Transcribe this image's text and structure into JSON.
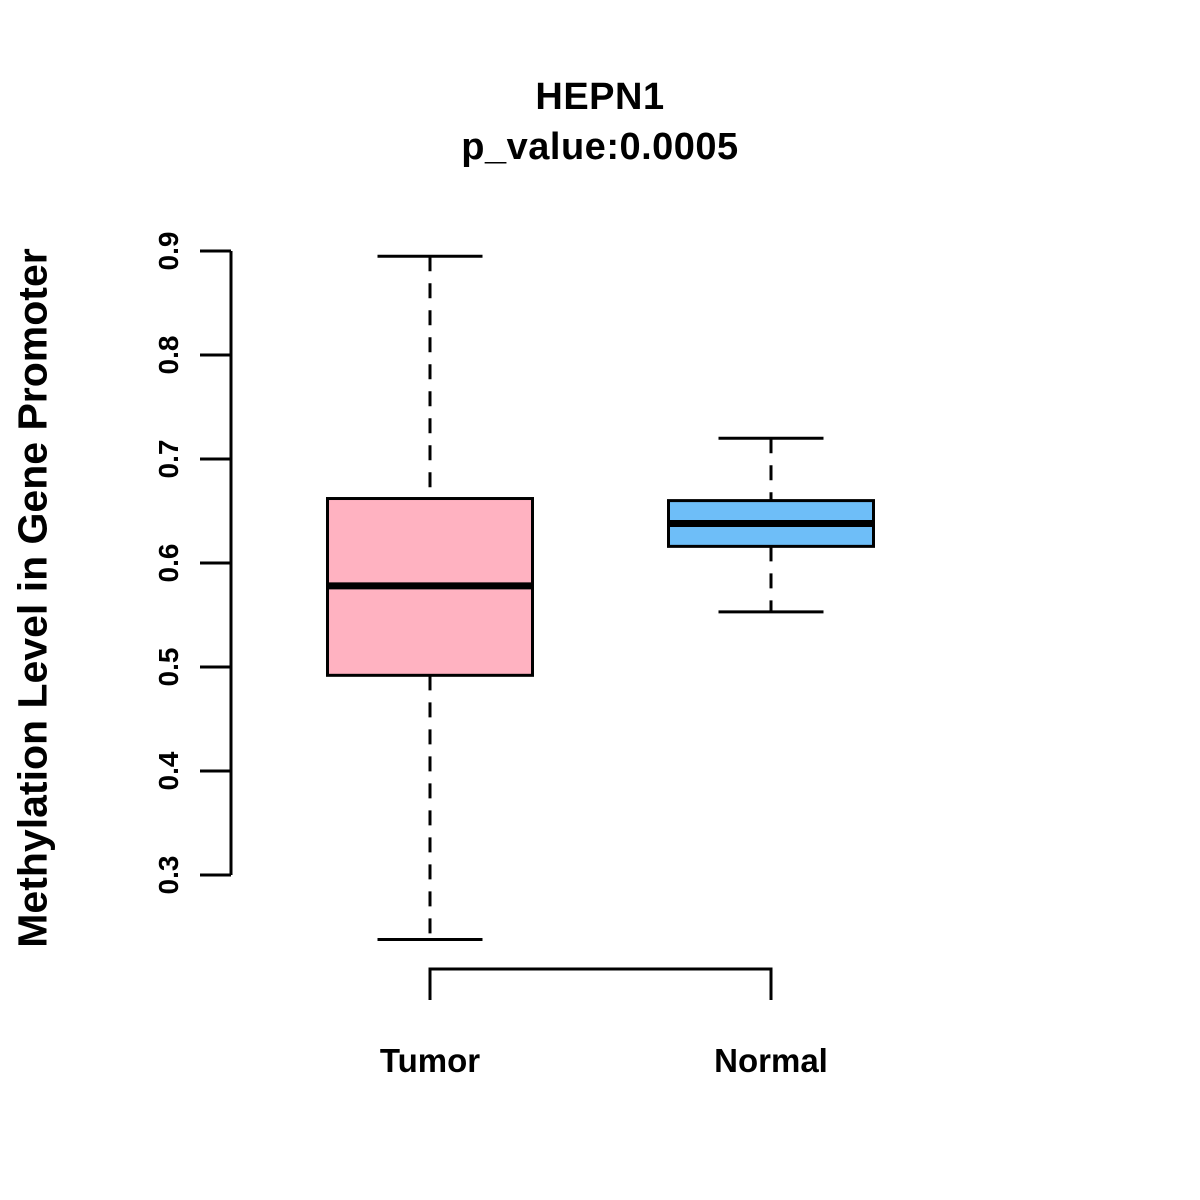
{
  "chart_data": {
    "type": "boxplot",
    "title": "HEPN1",
    "subtitle": "p_value:0.0005",
    "ylabel": "Methylation Level in Gene Promoter",
    "xlabel": "",
    "categories": [
      "Tumor",
      "Normal"
    ],
    "ytick_labels": [
      "0.3",
      "0.4",
      "0.5",
      "0.6",
      "0.7",
      "0.8",
      "0.9"
    ],
    "ytick_values": [
      0.3,
      0.4,
      0.5,
      0.6,
      0.7,
      0.8,
      0.9
    ],
    "axis_tick_range": [
      0.3,
      0.9
    ],
    "grid": false,
    "legend": "none",
    "series": [
      {
        "name": "Tumor",
        "box_fill": "#FFB2C1",
        "whisker_low": 0.238,
        "q1": 0.492,
        "median": 0.578,
        "q3": 0.662,
        "whisker_high": 0.895,
        "outliers": []
      },
      {
        "name": "Normal",
        "box_fill": "#6EBEF8",
        "whisker_low": 0.553,
        "q1": 0.616,
        "median": 0.638,
        "q3": 0.66,
        "whisker_high": 0.72,
        "outliers": []
      }
    ],
    "colors": {
      "stroke": "#000000",
      "background": "#FFFFFF",
      "tumor_fill": "#FFB2C1",
      "normal_fill": "#6EBEF8"
    }
  }
}
